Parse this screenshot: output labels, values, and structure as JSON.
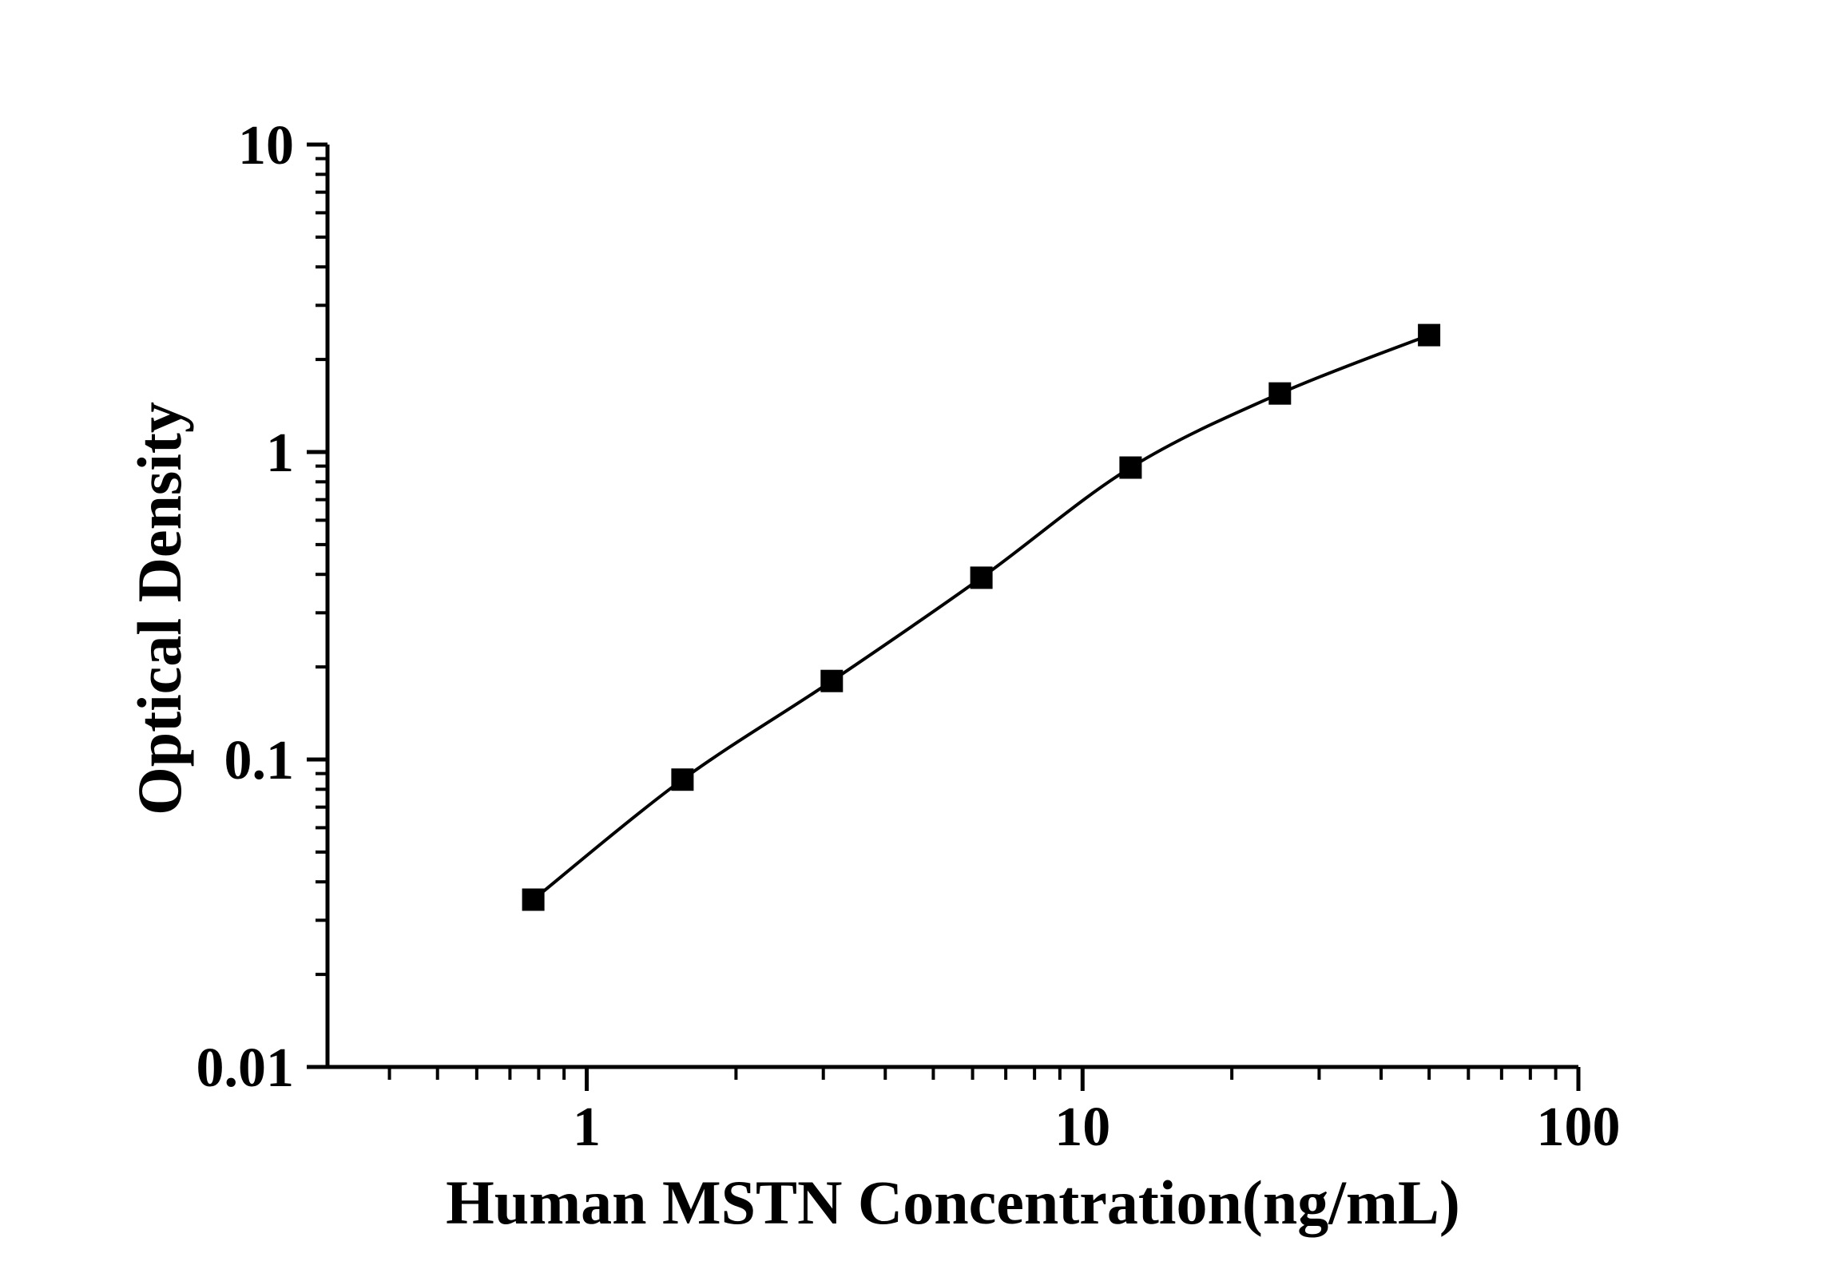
{
  "figure": {
    "background": "#ffffff",
    "foreground": "#000000"
  },
  "chart_data": {
    "type": "line",
    "title": "",
    "xlabel": "Human MSTN Concentration(ng/mL)",
    "ylabel": "Optical Density",
    "x_scale": "log",
    "y_scale": "log",
    "xlim": [
      0.3,
      100
    ],
    "ylim": [
      0.01,
      10
    ],
    "grid": false,
    "legend": "none",
    "axis_color": "#000000",
    "x_ticks": [
      {
        "value": 1,
        "label": "1"
      },
      {
        "value": 10,
        "label": "10"
      },
      {
        "value": 100,
        "label": "100"
      }
    ],
    "y_ticks": [
      {
        "value": 0.01,
        "label": "0.01"
      },
      {
        "value": 0.1,
        "label": "0.1"
      },
      {
        "value": 1,
        "label": "1"
      },
      {
        "value": 10,
        "label": "10"
      }
    ],
    "series": [
      {
        "marker": "filled-square",
        "color": "#000000",
        "x": [
          0.78,
          1.56,
          3.12,
          6.25,
          12.5,
          25,
          50
        ],
        "y": [
          0.035,
          0.086,
          0.18,
          0.39,
          0.89,
          1.55,
          2.4
        ]
      }
    ]
  }
}
